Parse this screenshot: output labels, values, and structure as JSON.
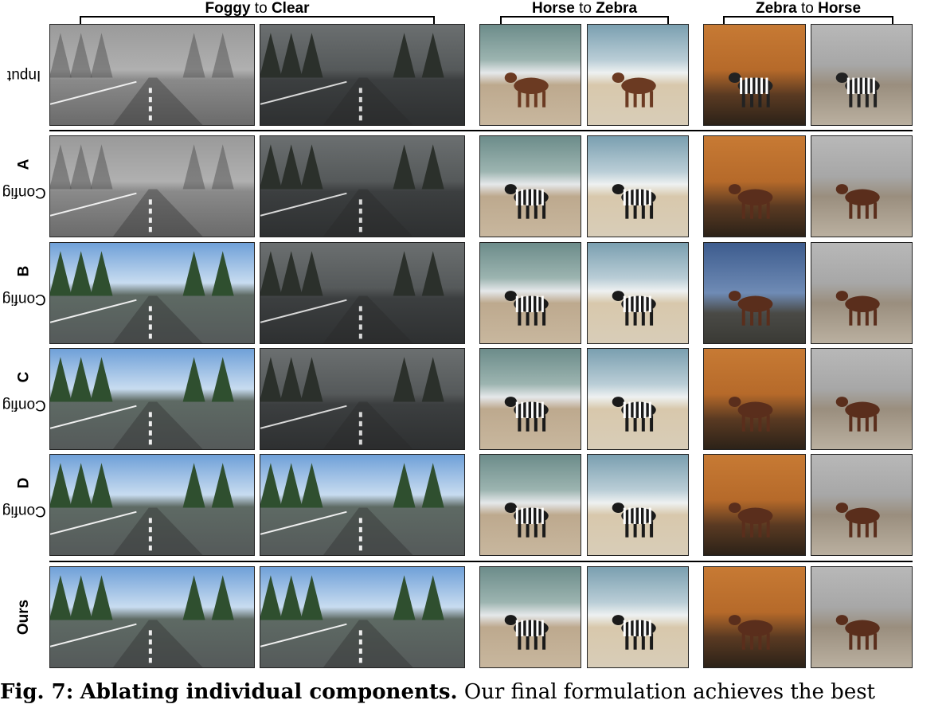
{
  "groups": [
    {
      "from": "Foggy",
      "connector": "to",
      "to": "Clear"
    },
    {
      "from": "Horse",
      "connector": "to",
      "to": "Zebra"
    },
    {
      "from": "Zebra",
      "connector": "to",
      "to": "Horse"
    }
  ],
  "rows": [
    {
      "prefix": "",
      "bold": "",
      "plain": "Input"
    },
    {
      "prefix": "Config ",
      "bold": "A",
      "plain": ""
    },
    {
      "prefix": "Config ",
      "bold": "B",
      "plain": ""
    },
    {
      "prefix": "Config ",
      "bold": "C",
      "plain": ""
    },
    {
      "prefix": "Config ",
      "bold": "D",
      "plain": ""
    },
    {
      "prefix": "",
      "bold": "Ours",
      "plain": ""
    }
  ],
  "caption": {
    "label": "Fig. 7:",
    "bold_title": "Ablating individual components.",
    "text": "Our final formulation achieves the best"
  }
}
